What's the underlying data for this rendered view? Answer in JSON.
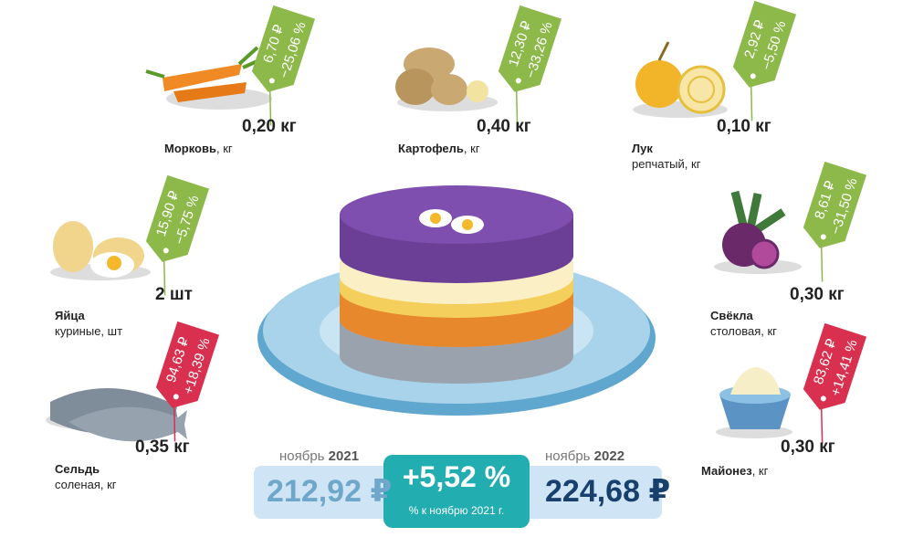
{
  "items": [
    {
      "name": "Морковь",
      "unit": ", кг",
      "quantity": "0,20 кг",
      "price": "6,70 ₽",
      "change": "−25,06 %"
    },
    {
      "name": "Картофель",
      "unit": ", кг",
      "quantity": "0,40 кг",
      "price": "12,30 ₽",
      "change": "−33,26 %"
    },
    {
      "name": "Лук",
      "unit": "репчатый, кг",
      "quantity": "0,10 кг",
      "price": "2,92 ₽",
      "change": "−5,50 %"
    },
    {
      "name": "Яйца",
      "unit": "куриные, шт",
      "quantity": "2 шт",
      "price": "15,90 ₽",
      "change": "−5,75 %"
    },
    {
      "name": "Свёкла",
      "unit": "столовая, кг",
      "quantity": "0,30 кг",
      "price": "8,61 ₽",
      "change": "−31,50 %"
    },
    {
      "name": "Сельдь",
      "unit": "соленая, кг",
      "quantity": "0,35 кг",
      "price": "94,63 ₽",
      "change": "+18,39 %"
    },
    {
      "name": "Майонез",
      "unit": ", кг",
      "quantity": "0,30 кг",
      "price": "83,62 ₽",
      "change": "+14,41 %"
    }
  ],
  "summary": {
    "before_month": "ноябрь",
    "before_year": "2021",
    "before_price": "212,92 ₽",
    "change": "+5,52 %",
    "change_note": "% к ноябрю 2021 г.",
    "after_month": "ноябрь",
    "after_year": "2022",
    "after_price": "224,68 ₽"
  }
}
